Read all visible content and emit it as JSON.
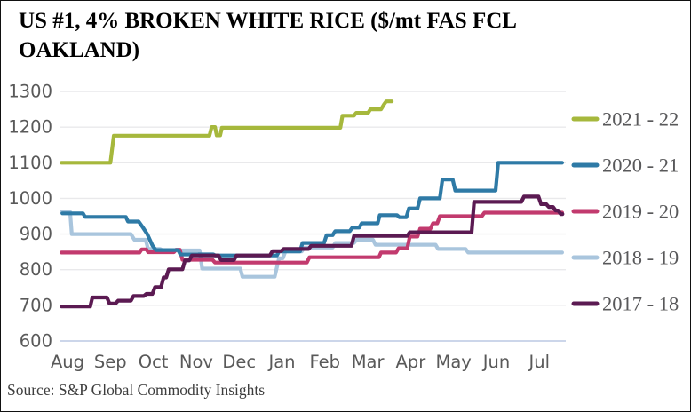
{
  "title": "US #1, 4% BROKEN WHITE RICE ($/mt FAS FCL OAKLAND)",
  "source": "Source: S&P Global Commodity Insights",
  "colors": {
    "axis_text": "#595959",
    "gridline": "#e9e9eb",
    "baseline": "#bcc8e4",
    "legend_text": "#58585a",
    "title_text": "#000000"
  },
  "chart_data": {
    "type": "line",
    "title": "US #1, 4% BROKEN WHITE RICE ($/mt FAS FCL OAKLAND)",
    "xlabel": "",
    "ylabel": "",
    "x_unit": "months since Aug (0 = Aug ... 11 = Jul)",
    "xlim": [
      -0.2,
      11.75
    ],
    "ylim": [
      600,
      1300
    ],
    "yticks": [
      600,
      700,
      800,
      900,
      1000,
      1100,
      1200,
      1300
    ],
    "xticklabels": [
      "Aug",
      "Sep",
      "Oct",
      "Nov",
      "Dec",
      "Jan",
      "Feb",
      "Mar",
      "Apr",
      "May",
      "Jun",
      "Jul"
    ],
    "grid": "horizontal",
    "legend_position": "right",
    "series": [
      {
        "name": "2021 - 22",
        "color": "#a6b83c",
        "points": [
          [
            -0.12,
            1100
          ],
          [
            1.02,
            1100
          ],
          [
            1.1,
            1176
          ],
          [
            3.33,
            1176
          ],
          [
            3.38,
            1200
          ],
          [
            3.46,
            1200
          ],
          [
            3.5,
            1177
          ],
          [
            3.58,
            1177
          ],
          [
            3.62,
            1198
          ],
          [
            6.38,
            1198
          ],
          [
            6.43,
            1232
          ],
          [
            6.7,
            1232
          ],
          [
            6.75,
            1240
          ],
          [
            7.03,
            1240
          ],
          [
            7.08,
            1250
          ],
          [
            7.33,
            1250
          ],
          [
            7.4,
            1264
          ],
          [
            7.45,
            1272
          ],
          [
            7.58,
            1272
          ]
        ]
      },
      {
        "name": "2020 - 21",
        "color": "#2e7aa6",
        "points": [
          [
            -0.1,
            958
          ],
          [
            0.38,
            958
          ],
          [
            0.43,
            948
          ],
          [
            1.38,
            948
          ],
          [
            1.43,
            935
          ],
          [
            1.68,
            935
          ],
          [
            1.78,
            918
          ],
          [
            1.88,
            900
          ],
          [
            2.0,
            868
          ],
          [
            2.08,
            855
          ],
          [
            2.6,
            855
          ],
          [
            2.65,
            843
          ],
          [
            3.42,
            843
          ],
          [
            3.47,
            840
          ],
          [
            4.9,
            840
          ],
          [
            4.95,
            851
          ],
          [
            5.44,
            851
          ],
          [
            5.5,
            875
          ],
          [
            6.0,
            875
          ],
          [
            6.06,
            897
          ],
          [
            6.2,
            897
          ],
          [
            6.26,
            908
          ],
          [
            6.6,
            908
          ],
          [
            6.66,
            918
          ],
          [
            6.82,
            918
          ],
          [
            6.88,
            930
          ],
          [
            7.25,
            930
          ],
          [
            7.3,
            953
          ],
          [
            7.7,
            953
          ],
          [
            7.76,
            947
          ],
          [
            7.92,
            947
          ],
          [
            7.98,
            972
          ],
          [
            8.18,
            972
          ],
          [
            8.24,
            1000
          ],
          [
            8.7,
            1000
          ],
          [
            8.76,
            1053
          ],
          [
            9.0,
            1053
          ],
          [
            9.06,
            1022
          ],
          [
            10.0,
            1022
          ],
          [
            10.06,
            1100
          ],
          [
            11.55,
            1100
          ]
        ]
      },
      {
        "name": "2019 - 20",
        "color": "#c23a6e",
        "points": [
          [
            -0.12,
            848
          ],
          [
            1.7,
            848
          ],
          [
            1.75,
            857
          ],
          [
            1.86,
            857
          ],
          [
            1.9,
            849
          ],
          [
            2.5,
            849
          ],
          [
            2.55,
            856
          ],
          [
            2.64,
            856
          ],
          [
            2.7,
            828
          ],
          [
            3.4,
            828
          ],
          [
            3.46,
            820
          ],
          [
            5.6,
            820
          ],
          [
            5.66,
            835
          ],
          [
            7.28,
            835
          ],
          [
            7.33,
            848
          ],
          [
            7.68,
            848
          ],
          [
            7.74,
            860
          ],
          [
            7.94,
            860
          ],
          [
            8.0,
            893
          ],
          [
            8.18,
            893
          ],
          [
            8.24,
            915
          ],
          [
            8.48,
            915
          ],
          [
            8.54,
            930
          ],
          [
            8.64,
            930
          ],
          [
            8.7,
            950
          ],
          [
            9.68,
            950
          ],
          [
            9.74,
            960
          ],
          [
            11.55,
            960
          ]
        ]
      },
      {
        "name": "2018 - 19",
        "color": "#a9c5dd",
        "points": [
          [
            -0.12,
            962
          ],
          [
            0.08,
            962
          ],
          [
            0.12,
            900
          ],
          [
            1.5,
            900
          ],
          [
            1.58,
            884
          ],
          [
            1.84,
            884
          ],
          [
            1.9,
            858
          ],
          [
            2.18,
            858
          ],
          [
            2.24,
            854
          ],
          [
            3.1,
            854
          ],
          [
            3.16,
            803
          ],
          [
            4.05,
            803
          ],
          [
            4.1,
            780
          ],
          [
            4.85,
            780
          ],
          [
            4.95,
            832
          ],
          [
            5.04,
            832
          ],
          [
            5.1,
            851
          ],
          [
            5.48,
            851
          ],
          [
            5.54,
            862
          ],
          [
            6.2,
            862
          ],
          [
            6.26,
            875
          ],
          [
            6.7,
            875
          ],
          [
            6.76,
            884
          ],
          [
            7.14,
            884
          ],
          [
            7.2,
            870
          ],
          [
            8.6,
            870
          ],
          [
            8.66,
            858
          ],
          [
            9.3,
            858
          ],
          [
            9.36,
            848
          ],
          [
            11.55,
            848
          ]
        ]
      },
      {
        "name": "2017 - 18",
        "color": "#5b1a52",
        "points": [
          [
            -0.12,
            697
          ],
          [
            0.55,
            697
          ],
          [
            0.6,
            722
          ],
          [
            0.94,
            722
          ],
          [
            1.0,
            705
          ],
          [
            1.14,
            705
          ],
          [
            1.2,
            713
          ],
          [
            1.5,
            713
          ],
          [
            1.56,
            726
          ],
          [
            1.8,
            726
          ],
          [
            1.86,
            732
          ],
          [
            2.0,
            732
          ],
          [
            2.06,
            751
          ],
          [
            2.2,
            751
          ],
          [
            2.26,
            778
          ],
          [
            2.32,
            778
          ],
          [
            2.38,
            801
          ],
          [
            2.7,
            801
          ],
          [
            2.76,
            826
          ],
          [
            2.86,
            826
          ],
          [
            2.92,
            840
          ],
          [
            3.54,
            840
          ],
          [
            3.6,
            827
          ],
          [
            3.9,
            827
          ],
          [
            3.96,
            840
          ],
          [
            4.74,
            840
          ],
          [
            4.8,
            852
          ],
          [
            5.0,
            852
          ],
          [
            5.06,
            858
          ],
          [
            5.64,
            858
          ],
          [
            5.7,
            867
          ],
          [
            6.64,
            867
          ],
          [
            6.7,
            895
          ],
          [
            7.94,
            895
          ],
          [
            8.0,
            905
          ],
          [
            9.44,
            905
          ],
          [
            9.5,
            990
          ],
          [
            10.6,
            990
          ],
          [
            10.66,
            1005
          ],
          [
            11.0,
            1005
          ],
          [
            11.06,
            984
          ],
          [
            11.18,
            984
          ],
          [
            11.24,
            976
          ],
          [
            11.34,
            976
          ],
          [
            11.4,
            966
          ],
          [
            11.46,
            966
          ],
          [
            11.52,
            956
          ],
          [
            11.56,
            956
          ]
        ]
      }
    ]
  }
}
